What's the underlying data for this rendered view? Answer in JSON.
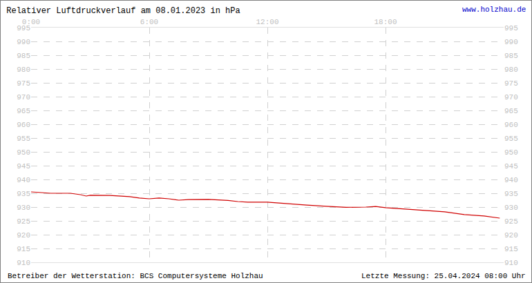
{
  "chart_data": {
    "type": "line",
    "title": "Relativer Luftdruckverlauf am 08.01.2023 in hPa",
    "annotations": [
      "www.holzhau.de",
      "Betreiber der Wetterstation: BCS Computersysteme Holzhau",
      "Letzte Messung: 25.04.2024 08:00 Uhr"
    ],
    "x": [
      0,
      0.5,
      1,
      2,
      2.5,
      2.8,
      3,
      4,
      5,
      5.5,
      6,
      6.5,
      7,
      7.5,
      8,
      9,
      10,
      10.5,
      11,
      12,
      12.5,
      13,
      14,
      15,
      16,
      17,
      17.5,
      18,
      19,
      20,
      21,
      22,
      22.5,
      23,
      23.8
    ],
    "values": [
      935.5,
      935.2,
      935,
      935,
      934.5,
      934,
      934.3,
      934.2,
      933.8,
      933.3,
      933,
      933.3,
      933,
      932.5,
      932.7,
      932.8,
      932.4,
      932,
      931.8,
      931.8,
      931.5,
      931.2,
      930.7,
      930.3,
      929.9,
      930,
      930.2,
      929.8,
      929.3,
      928.8,
      928.3,
      927.3,
      927.1,
      926.8,
      926
    ],
    "color": "#d00000",
    "xlim": [
      0,
      24
    ],
    "xticks": [
      {
        "value": 0,
        "label": "0:00"
      },
      {
        "value": 6,
        "label": "6:00"
      },
      {
        "value": 12,
        "label": "12:00"
      },
      {
        "value": 18,
        "label": "18:00"
      }
    ],
    "ylim": [
      910,
      995
    ],
    "yticks": [
      910,
      915,
      920,
      925,
      930,
      935,
      940,
      945,
      950,
      955,
      960,
      965,
      970,
      975,
      980,
      985,
      990,
      995
    ],
    "grid": true
  }
}
